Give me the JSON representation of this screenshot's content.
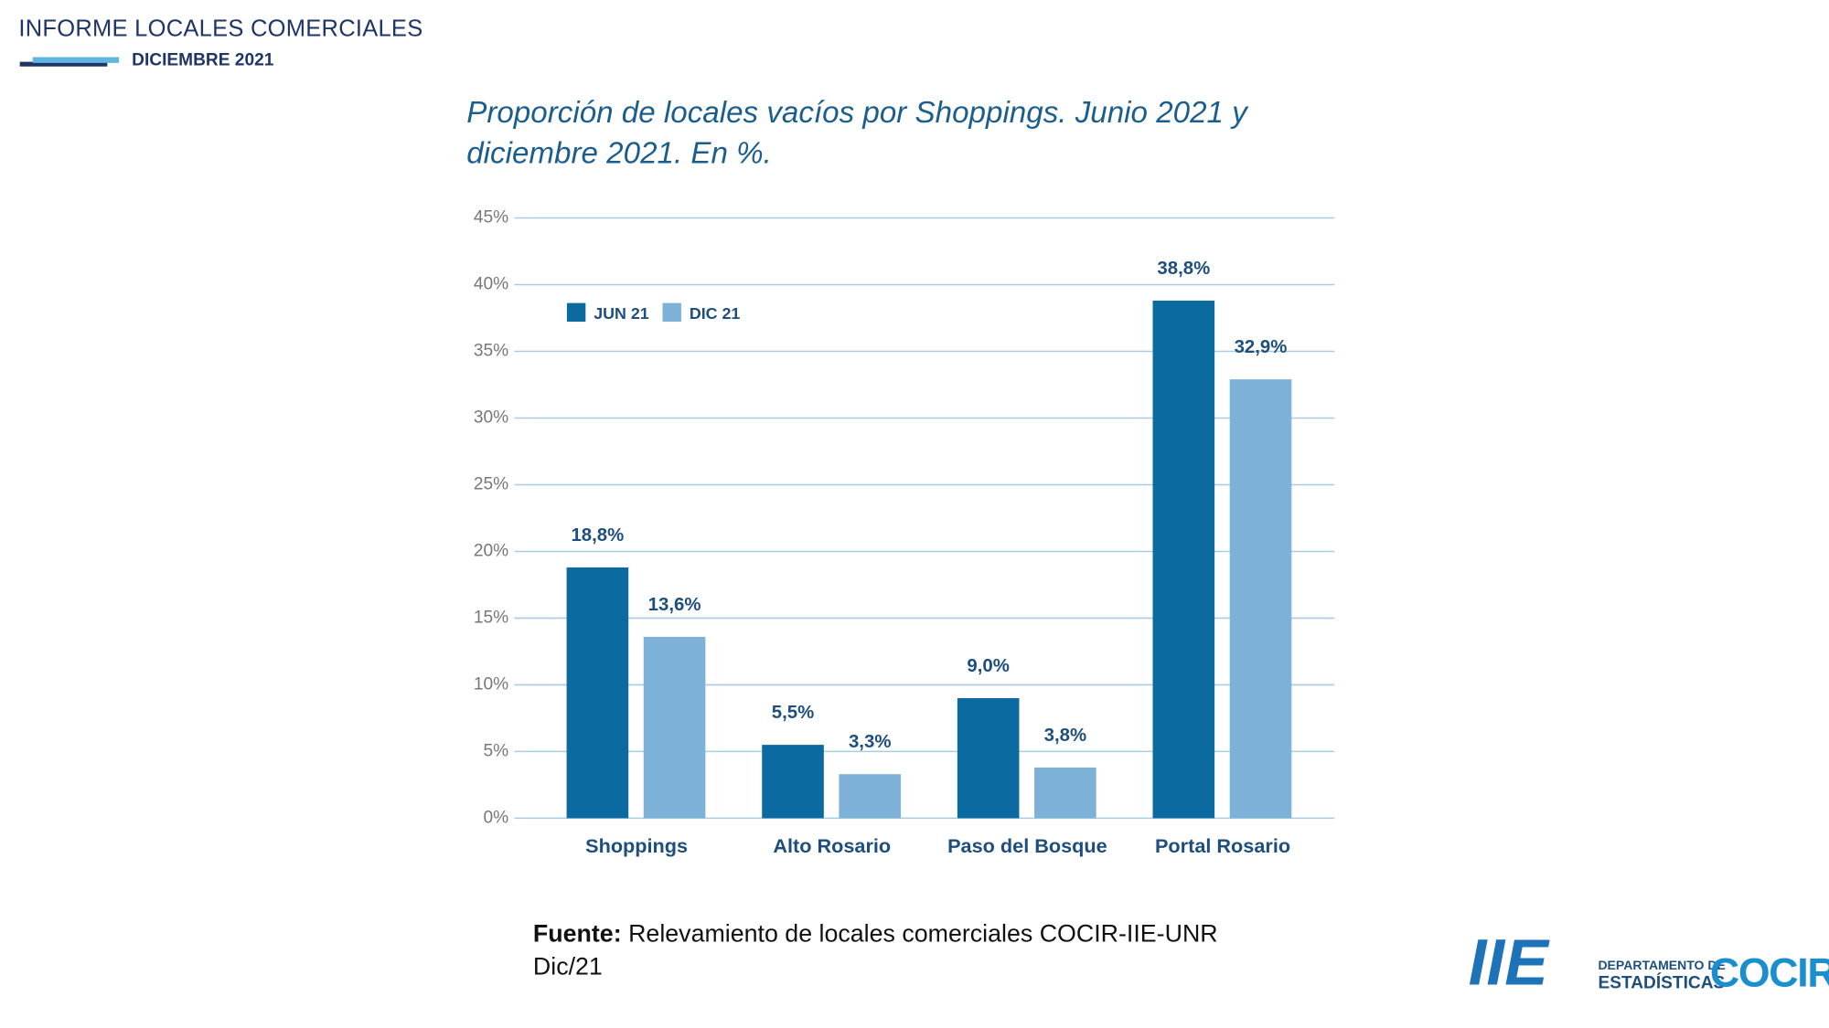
{
  "header": {
    "title": "INFORME LOCALES COMERCIALES",
    "date": "DICIEMBRE 2021"
  },
  "chart_data": {
    "type": "bar",
    "title_lines": [
      "Proporción de locales vacíos por Shoppings. Junio 2021 y",
      "diciembre 2021. En %."
    ],
    "categories": [
      "Shoppings",
      "Alto Rosario",
      "Paso del Bosque",
      "Portal Rosario"
    ],
    "series": [
      {
        "name": "JUN 21",
        "color": "#0b6a9f",
        "values": [
          18.8,
          5.5,
          9.0,
          38.8
        ],
        "value_labels": [
          "18,8%",
          "5,5%",
          "9,0%",
          "38,8%"
        ]
      },
      {
        "name": "DIC 21",
        "color": "#7db1d8",
        "values": [
          13.6,
          3.3,
          3.8,
          32.9
        ],
        "value_labels": [
          "13,6%",
          "3,3%",
          "3,8%",
          "32,9%"
        ]
      }
    ],
    "ylim": [
      0,
      45
    ],
    "yticks": [
      {
        "value": 0,
        "label": "0%"
      },
      {
        "value": 5,
        "label": "5%"
      },
      {
        "value": 10,
        "label": "10%"
      },
      {
        "value": 15,
        "label": "15%"
      },
      {
        "value": 20,
        "label": "20%"
      },
      {
        "value": 25,
        "label": "25%"
      },
      {
        "value": 30,
        "label": "30%"
      },
      {
        "value": 35,
        "label": "35%"
      },
      {
        "value": 40,
        "label": "40%"
      },
      {
        "value": 45,
        "label": "45%"
      }
    ],
    "grid": true,
    "legend": "top-left"
  },
  "source": {
    "label": "Fuente:",
    "lines": [
      "Relevamiento de locales comerciales COCIR-IIE-UNR",
      "Dic/21"
    ]
  },
  "logos": {
    "iie": "IIE",
    "dept_line1": "DEPARTAMENTO DE",
    "dept_line2": "ESTADÍSTICAS",
    "cocir": "COCIR"
  }
}
